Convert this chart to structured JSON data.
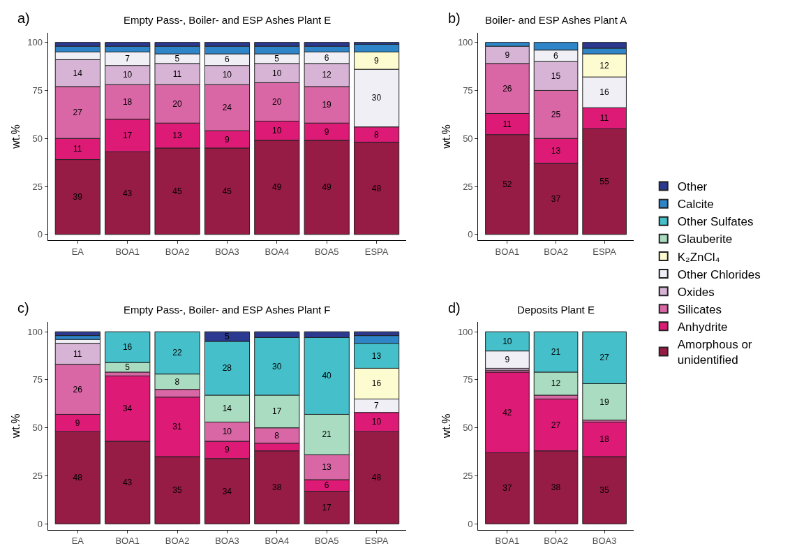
{
  "chart_data": [
    {
      "type": "bar",
      "stacked": true,
      "title": "Empty Pass-, Boiler- and ESP Ashes Plant E",
      "ylabel": "wt.%",
      "annotations": [
        "a)"
      ],
      "legend": "right",
      "categories": [
        "EA",
        "BOA1",
        "BOA2",
        "BOA3",
        "BOA4",
        "BOA5",
        "ESPA"
      ],
      "ylim": [
        -3,
        105
      ],
      "yticks": [
        0,
        25,
        50,
        75,
        100
      ],
      "series": [
        {
          "name": "Amorphous or unidentified",
          "color": "#961b45",
          "values": [
            39,
            43,
            45,
            45,
            49,
            49,
            48
          ],
          "value_labels": [
            "39",
            "43",
            "45",
            "45",
            "49",
            "49",
            "48"
          ]
        },
        {
          "name": "Anhydrite",
          "color": "#dd1a75",
          "values": [
            11,
            17,
            13,
            9,
            10,
            9,
            8
          ],
          "value_labels": [
            "11",
            "17",
            "13",
            "9",
            "10",
            "9",
            "8"
          ]
        },
        {
          "name": "Silicates",
          "color": "#d966a5",
          "values": [
            27,
            18,
            20,
            24,
            20,
            19,
            null
          ],
          "value_labels": [
            "27",
            "18",
            "20",
            "24",
            "20",
            "19",
            null
          ]
        },
        {
          "name": "Oxides",
          "color": "#d7b4d5",
          "values": [
            14,
            10,
            11,
            10,
            10,
            12,
            null
          ],
          "value_labels": [
            "14",
            "10",
            "11",
            "10",
            "10",
            "12",
            null
          ]
        },
        {
          "name": "Other Chlorides",
          "color": "#f0eff6",
          "values": [
            4,
            7,
            5,
            6,
            5,
            6,
            30
          ],
          "value_labels": [
            null,
            "7",
            "5",
            "6",
            "5",
            "6",
            "30"
          ]
        },
        {
          "name": "K₂ZnCl₄",
          "color": "#fdfbd0",
          "values": [
            null,
            null,
            null,
            null,
            null,
            null,
            9
          ],
          "value_labels": [
            null,
            null,
            null,
            null,
            null,
            null,
            "9"
          ]
        },
        {
          "name": "Glauberite",
          "color": "#a9dcc0",
          "values": [
            null,
            null,
            null,
            null,
            null,
            null,
            null
          ],
          "value_labels": [
            null,
            null,
            null,
            null,
            null,
            null,
            null
          ]
        },
        {
          "name": "Other Sulfates",
          "color": "#45bfc9",
          "values": [
            null,
            null,
            null,
            null,
            null,
            null,
            null
          ],
          "value_labels": [
            null,
            null,
            null,
            null,
            null,
            null,
            null
          ]
        },
        {
          "name": "Calcite",
          "color": "#2e86c8",
          "values": [
            3,
            3,
            4,
            4,
            4,
            3,
            4
          ],
          "value_labels": [
            null,
            null,
            null,
            null,
            null,
            null,
            null
          ]
        },
        {
          "name": "Other",
          "color": "#2b3990",
          "values": [
            2,
            2,
            2,
            2,
            2,
            2,
            1
          ],
          "value_labels": [
            null,
            null,
            null,
            null,
            null,
            null,
            null
          ]
        }
      ]
    },
    {
      "type": "bar",
      "stacked": true,
      "title": "Boiler- and ESP Ashes Plant A",
      "ylabel": "wt.%",
      "annotations": [
        "b)"
      ],
      "categories": [
        "BOA1",
        "BOA2",
        "ESPA"
      ],
      "ylim": [
        -3,
        105
      ],
      "yticks": [
        0,
        25,
        50,
        75,
        100
      ],
      "series": [
        {
          "color": "#961b45",
          "values": [
            52,
            37,
            55
          ],
          "value_labels": [
            "52",
            "37",
            "55"
          ]
        },
        {
          "color": "#dd1a75",
          "values": [
            11,
            13,
            11
          ],
          "value_labels": [
            "11",
            "13",
            "11"
          ]
        },
        {
          "color": "#d966a5",
          "values": [
            26,
            25,
            null
          ],
          "value_labels": [
            "26",
            "25",
            null
          ]
        },
        {
          "color": "#d7b4d5",
          "values": [
            9,
            15,
            null
          ],
          "value_labels": [
            "9",
            "15",
            null
          ]
        },
        {
          "color": "#f0eff6",
          "values": [
            null,
            6,
            16
          ],
          "value_labels": [
            null,
            "6",
            "16"
          ]
        },
        {
          "color": "#fdfbd0",
          "values": [
            null,
            null,
            12
          ],
          "value_labels": [
            null,
            null,
            "12"
          ]
        },
        {
          "color": "#2e86c8",
          "values": [
            2,
            4,
            3
          ],
          "value_labels": [
            null,
            null,
            null
          ]
        },
        {
          "color": "#2b3990",
          "values": [
            null,
            null,
            3
          ],
          "value_labels": [
            null,
            null,
            null
          ]
        }
      ]
    },
    {
      "type": "bar",
      "stacked": true,
      "title": "Empty Pass-, Boiler- and ESP Ashes Plant F",
      "ylabel": "wt.%",
      "annotations": [
        "c)"
      ],
      "categories": [
        "EA",
        "BOA1",
        "BOA2",
        "BOA3",
        "BOA4",
        "BOA5",
        "ESPA"
      ],
      "ylim": [
        -3,
        105
      ],
      "yticks": [
        0,
        25,
        50,
        75,
        100
      ],
      "series": [
        {
          "color": "#961b45",
          "values": [
            48,
            43,
            35,
            34,
            38,
            17,
            48
          ],
          "value_labels": [
            "48",
            "43",
            "35",
            "34",
            "38",
            "17",
            "48"
          ]
        },
        {
          "color": "#dd1a75",
          "values": [
            9,
            34,
            31,
            9,
            4,
            6,
            10
          ],
          "value_labels": [
            "9",
            "34",
            "31",
            "9",
            null,
            "6",
            "10"
          ]
        },
        {
          "color": "#d966a5",
          "values": [
            26,
            2,
            4,
            10,
            8,
            13,
            null
          ],
          "value_labels": [
            "26",
            null,
            null,
            "10",
            "8",
            "13",
            null
          ]
        },
        {
          "color": "#d7b4d5",
          "values": [
            11,
            null,
            null,
            null,
            null,
            null,
            null
          ],
          "value_labels": [
            "11",
            null,
            null,
            null,
            null,
            null,
            null
          ]
        },
        {
          "color": "#f0eff6",
          "values": [
            2,
            null,
            null,
            null,
            null,
            null,
            7
          ],
          "value_labels": [
            null,
            null,
            null,
            null,
            null,
            null,
            "7"
          ]
        },
        {
          "color": "#fdfbd0",
          "values": [
            null,
            null,
            null,
            null,
            null,
            null,
            16
          ],
          "value_labels": [
            null,
            null,
            null,
            null,
            null,
            null,
            "16"
          ]
        },
        {
          "color": "#a9dcc0",
          "values": [
            null,
            5,
            8,
            14,
            17,
            21,
            null
          ],
          "value_labels": [
            null,
            "5",
            "8",
            "14",
            "17",
            "21",
            null
          ]
        },
        {
          "color": "#45bfc9",
          "values": [
            null,
            16,
            22,
            28,
            30,
            40,
            13
          ],
          "value_labels": [
            null,
            "16",
            "22",
            "28",
            "30",
            "40",
            "13"
          ]
        },
        {
          "color": "#2e86c8",
          "values": [
            2,
            null,
            null,
            null,
            null,
            null,
            4
          ],
          "value_labels": [
            null,
            null,
            null,
            null,
            null,
            null,
            null
          ]
        },
        {
          "color": "#2b3990",
          "values": [
            2,
            null,
            null,
            5,
            3,
            3,
            2
          ],
          "value_labels": [
            null,
            null,
            null,
            "5",
            null,
            null,
            null
          ]
        }
      ]
    },
    {
      "type": "bar",
      "stacked": true,
      "title": "Deposits Plant E",
      "ylabel": "wt.%",
      "annotations": [
        "d)"
      ],
      "categories": [
        "BOA1",
        "BOA2",
        "BOA3"
      ],
      "ylim": [
        -3,
        105
      ],
      "yticks": [
        0,
        25,
        50,
        75,
        100
      ],
      "series": [
        {
          "color": "#961b45",
          "values": [
            37,
            38,
            35
          ],
          "value_labels": [
            "37",
            "38",
            "35"
          ]
        },
        {
          "color": "#dd1a75",
          "values": [
            42,
            27,
            18
          ],
          "value_labels": [
            "42",
            "27",
            "18"
          ]
        },
        {
          "color": "#d966a5",
          "values": [
            1,
            2,
            1
          ],
          "value_labels": [
            null,
            null,
            null
          ]
        },
        {
          "color": "#d7b4d5",
          "values": [
            1,
            null,
            null
          ],
          "value_labels": [
            null,
            null,
            null
          ]
        },
        {
          "color": "#f0eff6",
          "values": [
            9,
            null,
            null
          ],
          "value_labels": [
            "9",
            null,
            null
          ]
        },
        {
          "color": "#a9dcc0",
          "values": [
            null,
            12,
            19
          ],
          "value_labels": [
            null,
            "12",
            "19"
          ]
        },
        {
          "color": "#45bfc9",
          "values": [
            10,
            21,
            27
          ],
          "value_labels": [
            "10",
            "21",
            "27"
          ]
        }
      ]
    }
  ]
}
